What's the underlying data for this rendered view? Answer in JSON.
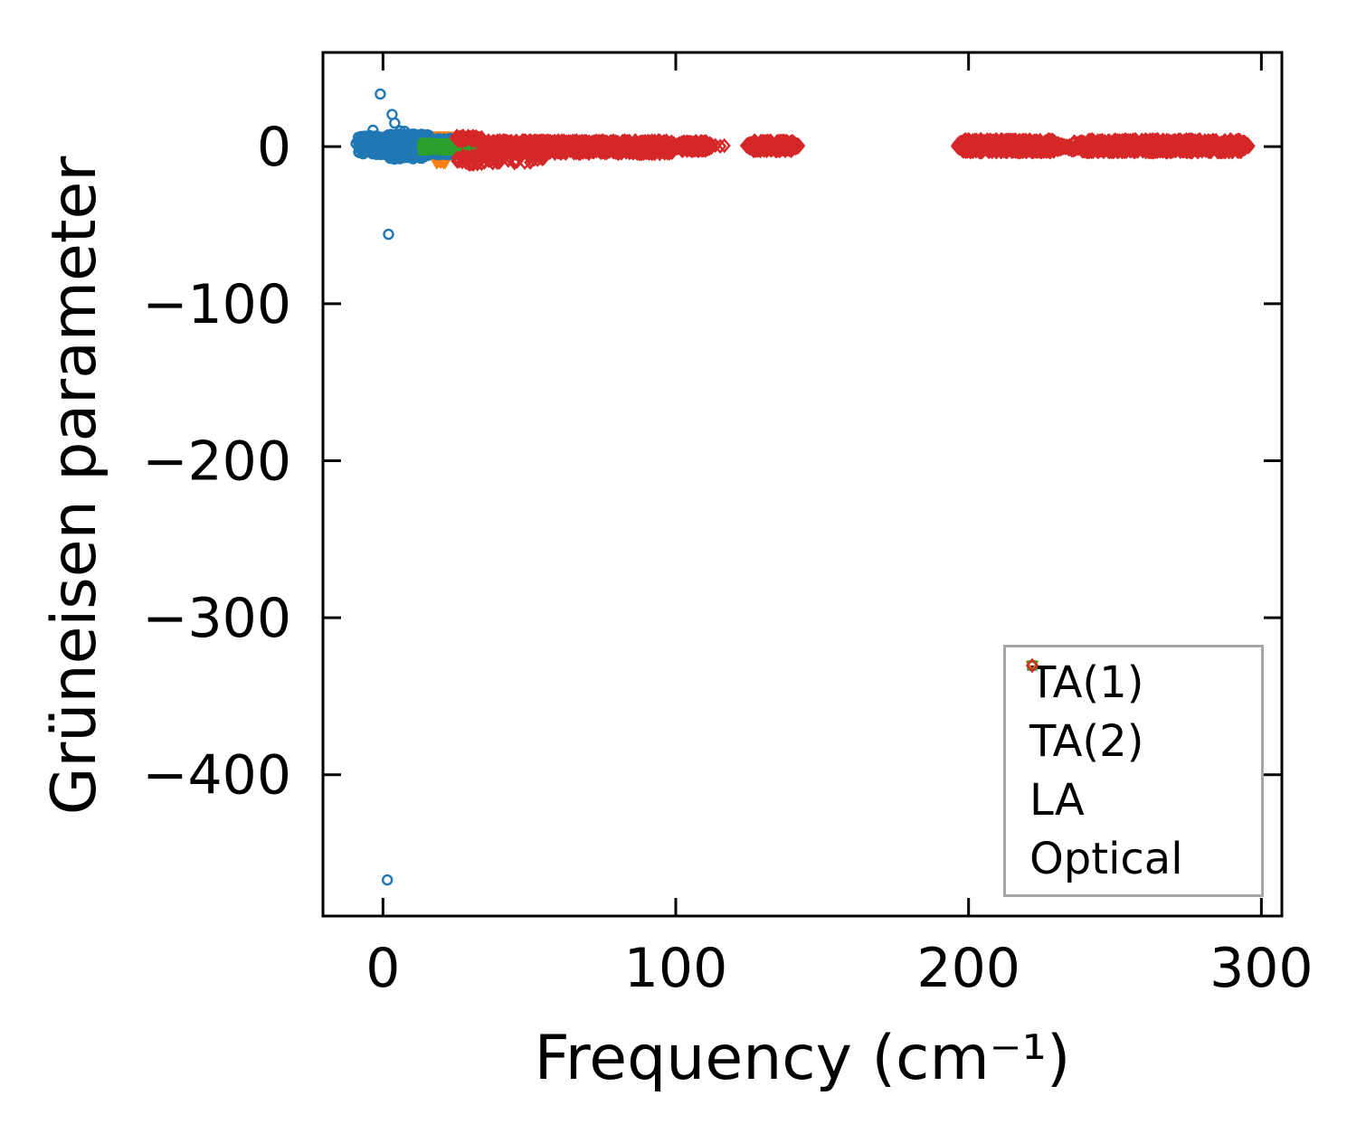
{
  "figure": {
    "background": "#ffffff"
  },
  "chart_data": {
    "type": "scatter",
    "title": "",
    "xlabel": "Frequency (cm⁻¹)",
    "ylabel": "Grüneisen parameter",
    "xlim": [
      -20.5,
      307
    ],
    "ylim": [
      -490,
      60
    ],
    "grid": false,
    "tick_direction": "in",
    "legend_position": "lower right",
    "legend_border_color": "#a6a6a6",
    "xticks": [
      {
        "v": 0,
        "label": "0"
      },
      {
        "v": 100,
        "label": "100"
      },
      {
        "v": 200,
        "label": "200"
      },
      {
        "v": 300,
        "label": "300"
      }
    ],
    "yticks": [
      {
        "v": 0,
        "label": "0"
      },
      {
        "v": -100,
        "label": "−100"
      },
      {
        "v": -200,
        "label": "−200"
      },
      {
        "v": -300,
        "label": "−300"
      },
      {
        "v": -400,
        "label": "−400"
      }
    ],
    "series": [
      {
        "name": "TA(1)",
        "color": "#1f77b4",
        "marker": "circle",
        "points": [
          [
            -0.9,
            33.5
          ],
          [
            3.1,
            20.5
          ],
          [
            4.0,
            15.0
          ],
          [
            -3.4,
            10.5
          ],
          [
            5.9,
            10.0
          ],
          [
            7.4,
            9.8
          ],
          [
            -7.5,
            6.5
          ],
          [
            -9.2,
            2.0
          ],
          [
            -8.0,
            -1.0
          ],
          [
            -5.5,
            4.0
          ],
          [
            -6.8,
            -2.5
          ],
          [
            1.9,
            -55.8
          ],
          [
            1.5,
            -467.0
          ]
        ],
        "bands": [
          {
            "x0": -8.5,
            "x1": 1.5,
            "n": 160,
            "y": 1.0,
            "amp": 6.0
          },
          {
            "x0": 1.5,
            "x1": 16.0,
            "n": 280,
            "y": 0.0,
            "amp": 8.0
          },
          {
            "x0": 16.0,
            "x1": 28.5,
            "n": 180,
            "y": 0.0,
            "amp": 5.5,
            "taper": 2
          }
        ]
      },
      {
        "name": "TA(2)",
        "color": "#ff7f0e",
        "marker": "triangle-down",
        "points": [
          [
            0.8,
            -1.5
          ],
          [
            1.6,
            1.0
          ]
        ],
        "bands": [
          {
            "x0": 0.5,
            "x1": 26.0,
            "n": 150,
            "y": 0.0,
            "amp": 3.0
          },
          {
            "x0": 14.0,
            "x1": 26.0,
            "n": 55,
            "y": 5.3,
            "amp": 1.6
          },
          {
            "x0": 17.0,
            "x1": 22.0,
            "n": 22,
            "y": -8.5,
            "amp": 1.8
          }
        ]
      },
      {
        "name": "LA",
        "color": "#2ca02c",
        "marker": "square",
        "points": [],
        "bands": [
          {
            "x0": 13.0,
            "x1": 27.0,
            "n": 90,
            "y": 0.0,
            "amp": 2.5
          },
          {
            "x0": 26.5,
            "x1": 34.3,
            "n": 170,
            "y": -1.5,
            "amp": 6.5,
            "taper": 1.5
          }
        ]
      },
      {
        "name": "Optical",
        "color": "#d62728",
        "marker": "diamond",
        "points": [
          [
            113.5,
            0.8
          ],
          [
            115.2,
            0.2
          ],
          [
            116.6,
            0.6
          ]
        ],
        "bands": [
          {
            "x0": 24.5,
            "x1": 34.0,
            "n": 45,
            "y": 5.2,
            "amp": 1.6
          },
          {
            "x0": 25.0,
            "x1": 34.0,
            "n": 32,
            "y": -8.5,
            "amp": 3.0
          },
          {
            "x0": 30.0,
            "x1": 55.0,
            "n": 55,
            "y": -7.0,
            "amp": 3.5,
            "taper": 3
          },
          {
            "x0": 34.0,
            "x1": 100.4,
            "n": 950,
            "y": -0.3,
            "amp": 4.2,
            "taper": 2
          },
          {
            "x0": 100.2,
            "x1": 112.5,
            "n": 170,
            "y": 0.4,
            "amp": 3.0,
            "taper": 2
          },
          {
            "x0": 124.0,
            "x1": 142.0,
            "n": 260,
            "y": 0.5,
            "amp": 3.2,
            "taper": 2.5
          },
          {
            "x0": 196.0,
            "x1": 231.0,
            "n": 560,
            "y": 0.5,
            "amp": 4.0,
            "taper": 2.5
          },
          {
            "x0": 229.0,
            "x1": 236.5,
            "n": 25,
            "y": 2.5,
            "y1": -2.5,
            "amp": 0.8
          },
          {
            "x0": 229.0,
            "x1": 236.5,
            "n": 25,
            "y": -2.5,
            "y1": 2.5,
            "amp": 0.8
          },
          {
            "x0": 236.5,
            "x1": 295.7,
            "n": 820,
            "y": 0.5,
            "amp": 4.0,
            "taper": 2.5
          }
        ]
      }
    ]
  }
}
